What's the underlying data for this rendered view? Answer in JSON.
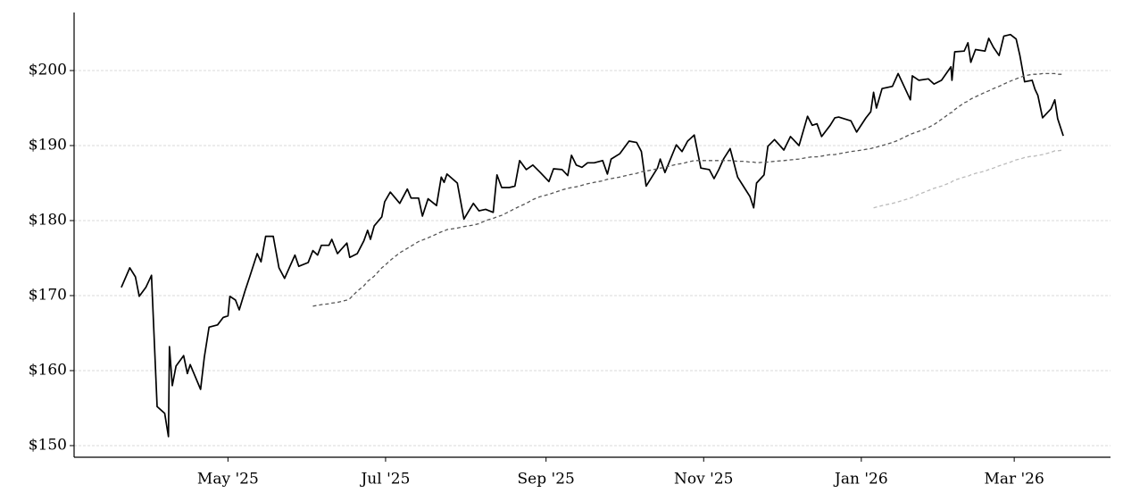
{
  "chart_data": {
    "type": "line",
    "x": [
      2025.216,
      2025.225,
      2025.231,
      2025.235,
      2025.242,
      2025.248,
      2025.254,
      2025.262,
      2025.266,
      2025.267,
      2025.27,
      2025.274,
      2025.282,
      2025.286,
      2025.289,
      2025.3,
      2025.304,
      2025.309,
      2025.318,
      2025.324,
      2025.329,
      2025.331,
      2025.337,
      2025.341,
      2025.347,
      2025.352,
      2025.36,
      2025.364,
      2025.369,
      2025.377,
      2025.383,
      2025.389,
      2025.4,
      2025.404,
      2025.414,
      2025.419,
      2025.424,
      2025.428,
      2025.436,
      2025.439,
      2025.445,
      2025.455,
      2025.458,
      2025.466,
      2025.473,
      2025.477,
      2025.48,
      2025.484,
      2025.492,
      2025.495,
      2025.501,
      2025.511,
      2025.519,
      2025.523,
      2025.531,
      2025.535,
      2025.541,
      2025.55,
      2025.555,
      2025.558,
      2025.561,
      2025.572,
      2025.579,
      2025.589,
      2025.595,
      2025.602,
      2025.61,
      2025.614,
      2025.619,
      2025.627,
      2025.633,
      2025.638,
      2025.645,
      2025.652,
      2025.66,
      2025.669,
      2025.674,
      2025.683,
      2025.689,
      2025.693,
      2025.698,
      2025.704,
      2025.71,
      2025.717,
      2025.726,
      2025.731,
      2025.735,
      2025.744,
      2025.754,
      2025.762,
      2025.767,
      2025.772,
      2025.784,
      2025.787,
      2025.792,
      2025.804,
      2025.81,
      2025.816,
      2025.823,
      2025.83,
      2025.839,
      2025.844,
      2025.849,
      2025.854,
      2025.861,
      2025.869,
      2025.876,
      2025.882,
      2025.886,
      2025.889,
      2025.897,
      2025.901,
      2025.908,
      2025.918,
      2025.925,
      2025.934,
      2025.943,
      2025.948,
      2025.953,
      2025.958,
      2025.967,
      2025.972,
      2025.976,
      2025.989,
      2025.995,
      2026.005,
      2026.01,
      2026.013,
      2026.016,
      2026.022,
      2026.033,
      2026.039,
      2026.052,
      2026.054,
      2026.061,
      2026.071,
      2026.077,
      2026.085,
      2026.095,
      2026.096,
      2026.099,
      2026.109,
      2026.113,
      2026.116,
      2026.121,
      2026.131,
      2026.135,
      2026.14,
      2026.146,
      2026.151,
      2026.158,
      2026.164,
      2026.168,
      2026.173,
      2026.181,
      2026.184,
      2026.187,
      2026.192,
      2026.201,
      2026.205,
      2026.208,
      2026.214
    ],
    "series": [
      {
        "color": "#000000",
        "linestyle": "solid",
        "values": [
          171.1,
          173.7,
          172.5,
          169.9,
          171.1,
          172.7,
          155.2,
          154.3,
          151.2,
          163.2,
          158,
          160.6,
          162,
          159.6,
          160.8,
          157.5,
          161.8,
          165.8,
          166.1,
          167.1,
          167.3,
          169.9,
          169.4,
          168.1,
          170.6,
          172.5,
          175.6,
          174.5,
          177.9,
          177.9,
          173.7,
          172.3,
          175.4,
          173.9,
          174.4,
          176,
          175.4,
          176.7,
          176.7,
          177.5,
          175.6,
          177,
          175.1,
          175.6,
          177.3,
          178.7,
          177.5,
          179.3,
          180.5,
          182.5,
          183.8,
          182.3,
          184.2,
          183,
          183,
          180.6,
          182.9,
          182,
          185.8,
          185.1,
          186.2,
          185,
          180.2,
          182.3,
          181.3,
          181.5,
          181.1,
          186.1,
          184.4,
          184.4,
          184.6,
          188,
          186.8,
          187.4,
          186.4,
          185.2,
          186.9,
          186.8,
          186,
          188.7,
          187.4,
          187.1,
          187.7,
          187.7,
          188,
          186.2,
          188.2,
          188.9,
          190.6,
          190.4,
          189.2,
          184.6,
          187,
          188.2,
          186.4,
          190.1,
          189.2,
          190.6,
          191.4,
          187,
          186.8,
          185.6,
          186.8,
          188.2,
          189.6,
          185.8,
          184.4,
          183.2,
          181.7,
          185,
          186.1,
          189.9,
          190.8,
          189.4,
          191.2,
          190,
          193.9,
          192.7,
          192.9,
          191.2,
          192.7,
          193.7,
          193.8,
          193.3,
          191.8,
          193.7,
          194.5,
          197.1,
          195,
          197.6,
          197.9,
          199.6,
          196.1,
          199.3,
          198.7,
          198.9,
          198.2,
          198.7,
          200.5,
          198.7,
          202.5,
          202.6,
          203.7,
          201.1,
          202.8,
          202.6,
          204.3,
          203.1,
          202,
          204.6,
          204.8,
          204.2,
          202,
          198.5,
          198.7,
          197.5,
          196.7,
          193.7,
          194.9,
          196.1,
          193.6,
          191.3
        ]
      },
      {
        "color": "#555555",
        "linestyle": "dashed",
        "values": [
          null,
          null,
          null,
          null,
          null,
          null,
          null,
          null,
          null,
          null,
          null,
          null,
          null,
          null,
          null,
          null,
          null,
          null,
          null,
          null,
          null,
          null,
          null,
          null,
          null,
          null,
          null,
          null,
          null,
          null,
          null,
          null,
          null,
          null,
          null,
          168.6,
          168.7,
          168.8,
          168.9,
          169.0,
          169.1,
          169.4,
          169.6,
          170.6,
          171.3,
          171.9,
          172.2,
          172.6,
          173.7,
          174.0,
          174.7,
          175.7,
          176.3,
          176.6,
          177.2,
          177.4,
          177.7,
          178.2,
          178.5,
          178.6,
          178.8,
          179.0,
          179.2,
          179.4,
          179.6,
          180.0,
          180.3,
          180.5,
          180.7,
          181.2,
          181.6,
          181.9,
          182.3,
          182.8,
          183.2,
          183.5,
          183.7,
          184.1,
          184.3,
          184.4,
          184.5,
          184.7,
          184.9,
          185.1,
          185.3,
          185.5,
          185.6,
          185.8,
          186.1,
          186.3,
          186.5,
          186.6,
          186.9,
          187.0,
          187.1,
          187.5,
          187.6,
          187.8,
          188.0,
          188.0,
          188.0,
          188.0,
          188.0,
          188.0,
          188.0,
          187.9,
          187.9,
          187.8,
          187.8,
          187.7,
          187.8,
          187.8,
          187.9,
          188.0,
          188.1,
          188.2,
          188.4,
          188.5,
          188.5,
          188.6,
          188.8,
          188.8,
          188.9,
          189.2,
          189.3,
          189.5,
          189.6,
          189.7,
          189.8,
          190.0,
          190.4,
          190.7,
          191.5,
          191.6,
          191.9,
          192.4,
          192.8,
          193.5,
          194.4,
          194.4,
          194.8,
          195.7,
          195.9,
          196.2,
          196.5,
          197.1,
          197.3,
          197.6,
          197.9,
          198.2,
          198.6,
          198.9,
          199.1,
          199.3,
          199.5,
          199.5,
          199.5,
          199.6,
          199.6,
          199.6,
          199.5,
          199.5
        ]
      },
      {
        "color": "#bbbbbb",
        "linestyle": "dashed",
        "values": [
          null,
          null,
          null,
          null,
          null,
          null,
          null,
          null,
          null,
          null,
          null,
          null,
          null,
          null,
          null,
          null,
          null,
          null,
          null,
          null,
          null,
          null,
          null,
          null,
          null,
          null,
          null,
          null,
          null,
          null,
          null,
          null,
          null,
          null,
          null,
          null,
          null,
          null,
          null,
          null,
          null,
          null,
          null,
          null,
          null,
          null,
          null,
          null,
          null,
          null,
          null,
          null,
          null,
          null,
          null,
          null,
          null,
          null,
          null,
          null,
          null,
          null,
          null,
          null,
          null,
          null,
          null,
          null,
          null,
          null,
          null,
          null,
          null,
          null,
          null,
          null,
          null,
          null,
          null,
          null,
          null,
          null,
          null,
          null,
          null,
          null,
          null,
          null,
          null,
          null,
          null,
          null,
          null,
          null,
          null,
          null,
          null,
          null,
          null,
          null,
          null,
          null,
          null,
          null,
          null,
          null,
          null,
          null,
          null,
          null,
          null,
          null,
          null,
          null,
          null,
          null,
          null,
          null,
          null,
          null,
          null,
          null,
          null,
          null,
          null,
          null,
          null,
          181.7,
          181.8,
          182.0,
          182.3,
          182.5,
          183.0,
          183.1,
          183.5,
          184.0,
          184.3,
          184.6,
          185.1,
          185.2,
          185.4,
          185.8,
          185.9,
          186.1,
          186.3,
          186.6,
          186.8,
          187.0,
          187.3,
          187.5,
          187.8,
          188.1,
          188.2,
          188.4,
          188.6,
          188.6,
          188.7,
          188.8,
          189.1,
          189.3,
          189.3,
          189.4
        ]
      }
    ],
    "xlim": [
      2025.166,
      2026.264
    ],
    "xticks": [
      {
        "value": 2025.329,
        "label": "May '25"
      },
      {
        "value": 2025.496,
        "label": "Jul '25"
      },
      {
        "value": 2025.666,
        "label": "Sep '25"
      },
      {
        "value": 2025.833,
        "label": "Nov '25"
      },
      {
        "value": 2026.0,
        "label": "Jan '26"
      },
      {
        "value": 2026.162,
        "label": "Mar '26"
      }
    ],
    "ylim": [
      148.45,
      207.74
    ],
    "yticks": [
      {
        "value": 150,
        "label": "$150"
      },
      {
        "value": 160,
        "label": "$160"
      },
      {
        "value": 170,
        "label": "$170"
      },
      {
        "value": 180,
        "label": "$180"
      },
      {
        "value": 190,
        "label": "$190"
      },
      {
        "value": 200,
        "label": "$200"
      }
    ],
    "grid": true
  }
}
